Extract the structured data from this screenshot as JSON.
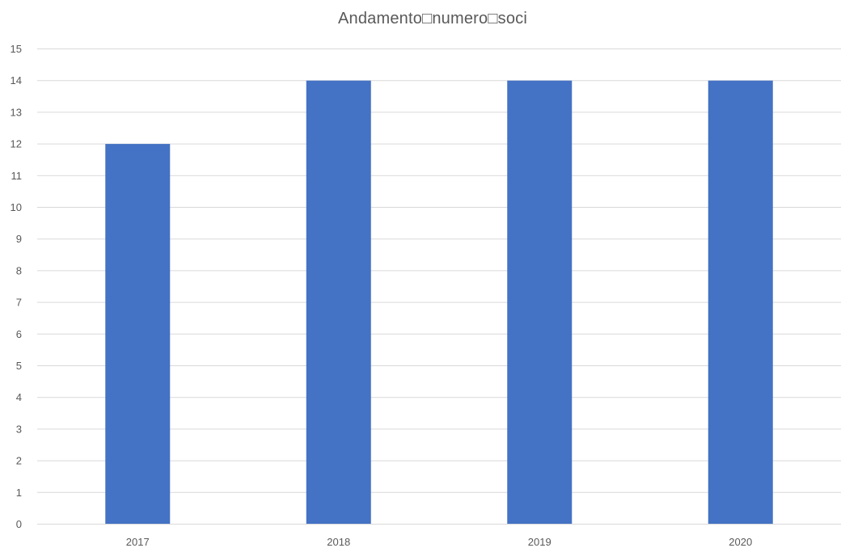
{
  "chart_data": {
    "type": "bar",
    "title": "Andamento□numero□soci",
    "categories": [
      "2017",
      "2018",
      "2019",
      "2020"
    ],
    "values": [
      12,
      14,
      14,
      14
    ],
    "ylim": [
      0,
      15
    ],
    "yticks": [
      0,
      1,
      2,
      3,
      4,
      5,
      6,
      7,
      8,
      9,
      10,
      11,
      12,
      13,
      14,
      15
    ],
    "grid": true,
    "legend": "none",
    "bar_color": "#4472C4"
  }
}
